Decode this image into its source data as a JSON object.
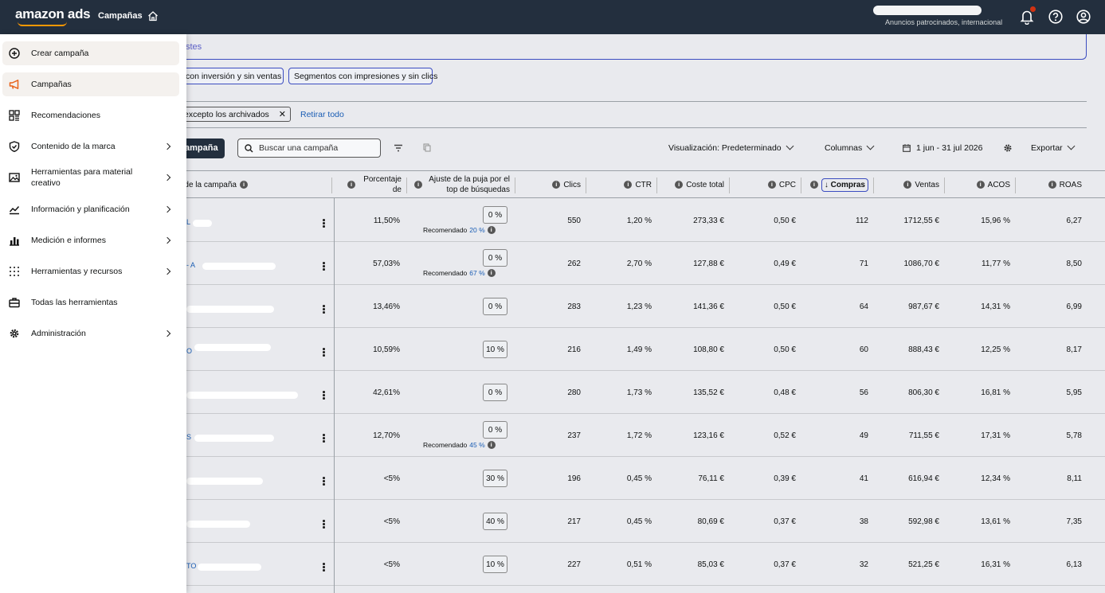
{
  "topbar": {
    "logo": "amazon ads",
    "section_title": "Campañas",
    "account_subtitle": "Anuncios patrocinados, internacional"
  },
  "banner": {
    "text": "stes"
  },
  "segments": [
    "con inversión y sin ventas",
    "Segmentos con impresiones y sin clics"
  ],
  "filters": {
    "chip_label": "excepto los archivados",
    "clear_all": "Retirar todo"
  },
  "toolbar": {
    "create_button": "ampaña",
    "search_placeholder": "Buscar una campaña",
    "view": "Visualización: Predeterminado",
    "columns": "Columnas",
    "date_range": "1 jun - 31 jul 2026",
    "export": "Exportar"
  },
  "table": {
    "headers": {
      "name": "de la campaña",
      "percent_top": "Porcentaje de",
      "bid_adjust": "Ajuste de la puja por el top de búsquedas",
      "clicks": "Clics",
      "ctr": "CTR",
      "total_cost": "Coste total",
      "cpc": "CPC",
      "purchases": "Compras",
      "sales": "Ventas",
      "acos": "ACOS",
      "roas": "ROAS"
    },
    "sort_arrow": "↓",
    "recommended_label": "Recomendado",
    "rows": [
      {
        "name_tail": "L",
        "pct": "11,50%",
        "bid": "0 %",
        "rec": "20 %",
        "clicks": "550",
        "ctr": "1,20 %",
        "cost": "273,33 €",
        "cpc": "0,50 €",
        "purchases": "112",
        "sales": "1712,55 €",
        "acos": "15,96 %",
        "roas": "6,27"
      },
      {
        "name_tail": "- A",
        "pct": "57,03%",
        "bid": "0 %",
        "rec": "67 %",
        "clicks": "262",
        "ctr": "2,70 %",
        "cost": "127,88 €",
        "cpc": "0,49 €",
        "purchases": "71",
        "sales": "1086,70 €",
        "acos": "11,77 %",
        "roas": "8,50"
      },
      {
        "name_tail": "",
        "pct": "13,46%",
        "bid": "0 %",
        "rec": "",
        "clicks": "283",
        "ctr": "1,23 %",
        "cost": "141,36 €",
        "cpc": "0,50 €",
        "purchases": "64",
        "sales": "987,67 €",
        "acos": "14,31 %",
        "roas": "6,99"
      },
      {
        "name_tail": "O",
        "pct": "10,59%",
        "bid": "10 %",
        "rec": "",
        "clicks": "216",
        "ctr": "1,49 %",
        "cost": "108,80 €",
        "cpc": "0,50 €",
        "purchases": "60",
        "sales": "888,43 €",
        "acos": "12,25 %",
        "roas": "8,17"
      },
      {
        "name_tail": "",
        "pct": "42,61%",
        "bid": "0 %",
        "rec": "",
        "clicks": "280",
        "ctr": "1,73 %",
        "cost": "135,52 €",
        "cpc": "0,48 €",
        "purchases": "56",
        "sales": "806,30 €",
        "acos": "16,81 %",
        "roas": "5,95"
      },
      {
        "name_tail": "S",
        "pct": "12,70%",
        "bid": "0 %",
        "rec": "45 %",
        "clicks": "237",
        "ctr": "1,72 %",
        "cost": "123,16 €",
        "cpc": "0,52 €",
        "purchases": "49",
        "sales": "711,55 €",
        "acos": "17,31 %",
        "roas": "5,78"
      },
      {
        "name_tail": "",
        "pct": "<5%",
        "bid": "30 %",
        "rec": "",
        "clicks": "196",
        "ctr": "0,45 %",
        "cost": "76,11 €",
        "cpc": "0,39 €",
        "purchases": "41",
        "sales": "616,94 €",
        "acos": "12,34 %",
        "roas": "8,11"
      },
      {
        "name_tail": "",
        "pct": "<5%",
        "bid": "40 %",
        "rec": "",
        "clicks": "217",
        "ctr": "0,45 %",
        "cost": "80,69 €",
        "cpc": "0,37 €",
        "purchases": "38",
        "sales": "592,98 €",
        "acos": "13,61 %",
        "roas": "7,35"
      },
      {
        "name_tail": "TO",
        "pct": "<5%",
        "bid": "10 %",
        "rec": "",
        "clicks": "227",
        "ctr": "0,51 %",
        "cost": "85,03 €",
        "cpc": "0,37 €",
        "purchases": "32",
        "sales": "521,25 €",
        "acos": "16,31 %",
        "roas": "6,13"
      }
    ]
  },
  "sidebar": {
    "items": [
      {
        "label": "Crear campaña",
        "icon": "plus-circle-icon",
        "arrow": false
      },
      {
        "label": "Campañas",
        "icon": "megaphone-icon",
        "arrow": false
      },
      {
        "label": "Recomendaciones",
        "icon": "grid-icon",
        "arrow": false
      },
      {
        "label": "Contenido de la marca",
        "icon": "shield-icon",
        "arrow": true
      },
      {
        "label": "Herramientas para material creativo",
        "icon": "image-icon",
        "arrow": true
      },
      {
        "label": "Información y planificación",
        "icon": "trend-icon",
        "arrow": true
      },
      {
        "label": "Medición e informes",
        "icon": "bar-chart-icon",
        "arrow": true
      },
      {
        "label": "Herramientas y recursos",
        "icon": "dots-grid-icon",
        "arrow": true
      },
      {
        "label": "Todas las herramientas",
        "icon": "toolbox-icon",
        "arrow": false
      },
      {
        "label": "Administración",
        "icon": "gear-icon",
        "arrow": true
      }
    ]
  },
  "colors": {
    "topbar": "#232f3e",
    "accent_orange": "#ff9900",
    "link_blue": "#1a5db4",
    "notification": "#d13212"
  }
}
